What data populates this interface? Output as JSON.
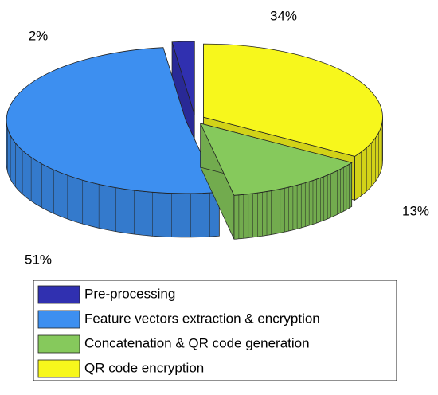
{
  "chart_data": {
    "type": "pie3d",
    "categories": [
      "Pre-processing",
      "Feature vectors extraction & encryption",
      "Concatenation & QR code generation",
      "QR code encryption"
    ],
    "values": [
      2,
      51,
      13,
      34
    ],
    "value_labels": [
      "2%",
      "51%",
      "13%",
      "34%"
    ],
    "colors": [
      "#3030b0",
      "#3d8ff0",
      "#86c95c",
      "#f7f71c"
    ]
  }
}
